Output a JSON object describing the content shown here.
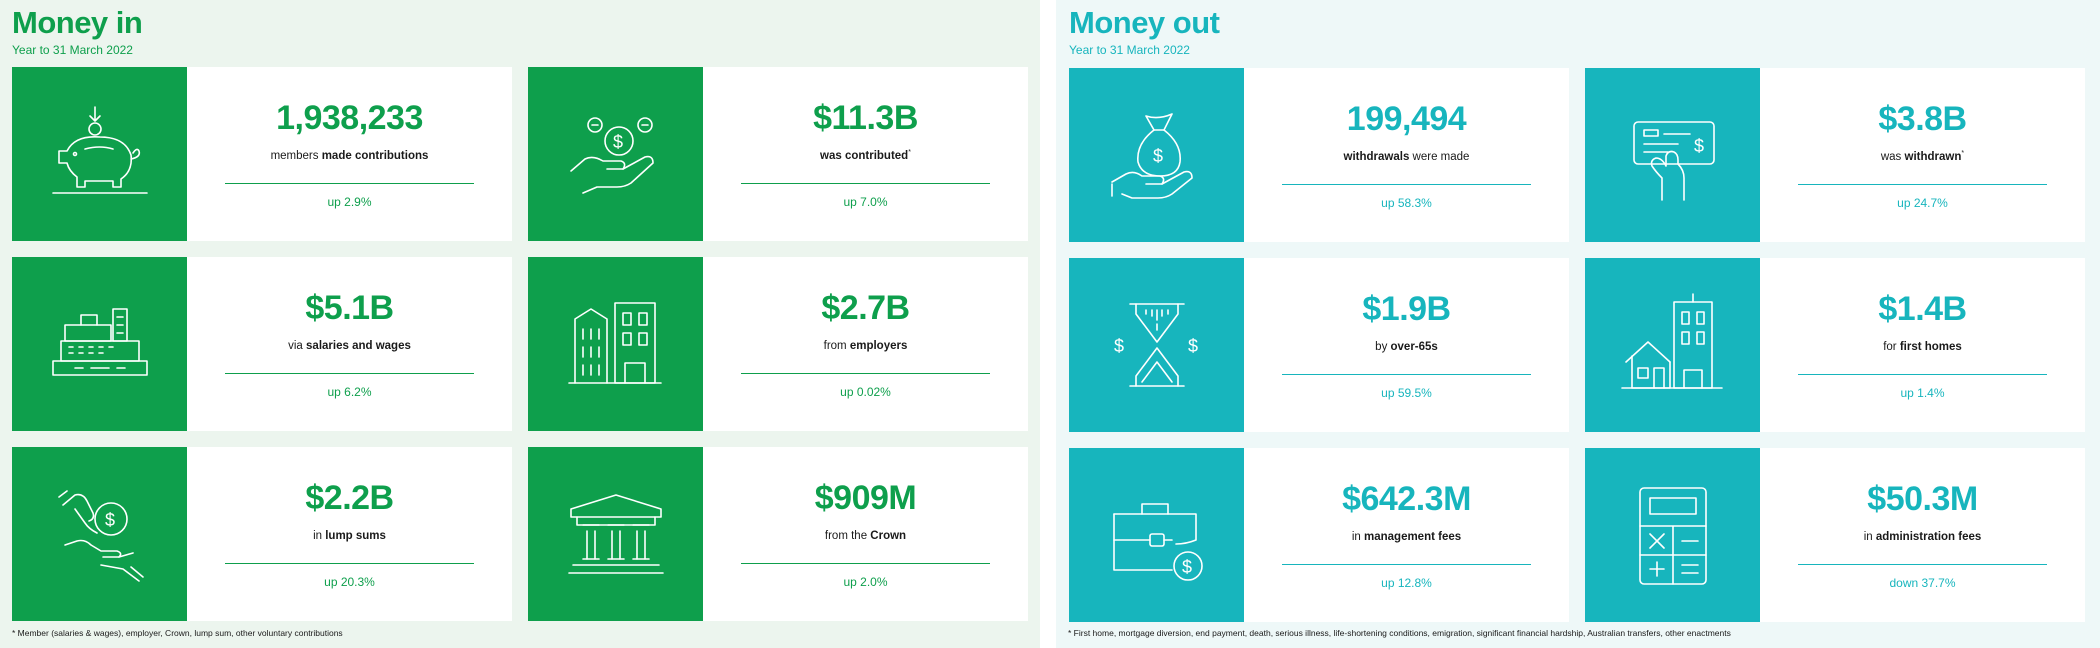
{
  "money_in": {
    "title": "Money in",
    "subtitle": "Year to 31 March 2022",
    "footnote": "* Member (salaries & wages), employer, Crown, lump sum, other voluntary contributions",
    "cards": [
      {
        "icon": "piggy-bank-icon",
        "value": "1,938,233",
        "desc_pre": "members ",
        "desc_bold": "made contributions",
        "desc_post": "",
        "sup": "",
        "change": "up 2.9%"
      },
      {
        "icon": "hand-coins-icon",
        "value": "$11.3B",
        "desc_pre": "",
        "desc_bold": "was contributed",
        "desc_post": "",
        "sup": "*",
        "change": "up 7.0%"
      },
      {
        "icon": "cash-register-icon",
        "value": "$5.1B",
        "desc_pre": "via ",
        "desc_bold": "salaries and wages",
        "desc_post": "",
        "sup": "",
        "change": "up 6.2%"
      },
      {
        "icon": "office-buildings-icon",
        "value": "$2.7B",
        "desc_pre": "from ",
        "desc_bold": "employers",
        "desc_post": "",
        "sup": "",
        "change": "up 0.02%"
      },
      {
        "icon": "hands-coin-icon",
        "value": "$2.2B",
        "desc_pre": "in ",
        "desc_bold": "lump sums",
        "desc_post": "",
        "sup": "",
        "change": "up 20.3%"
      },
      {
        "icon": "government-building-icon",
        "value": "$909M",
        "desc_pre": "from the ",
        "desc_bold": "Crown",
        "desc_post": "",
        "sup": "",
        "change": "up 2.0%"
      }
    ]
  },
  "money_out": {
    "title": "Money out",
    "subtitle": "Year to 31 March 2022",
    "footnote": "* First home, mortgage diversion, end payment, death, serious illness, life-shortening conditions, emigration, significant financial hardship, Australian transfers, other enactments",
    "cards": [
      {
        "icon": "money-bag-hand-icon",
        "value": "199,494",
        "desc_pre": "",
        "desc_bold": "withdrawals",
        "desc_post": " were made",
        "sup": "",
        "change": "up 58.3%"
      },
      {
        "icon": "cheque-hand-icon",
        "value": "$3.8B",
        "desc_pre": "was ",
        "desc_bold": "withdrawn",
        "desc_post": "",
        "sup": "*",
        "change": "up 24.7%"
      },
      {
        "icon": "hourglass-dollar-icon",
        "value": "$1.9B",
        "desc_pre": "by ",
        "desc_bold": "over-65s",
        "desc_post": "",
        "sup": "",
        "change": "up 59.5%"
      },
      {
        "icon": "house-building-icon",
        "value": "$1.4B",
        "desc_pre": "for ",
        "desc_bold": "first homes",
        "desc_post": "",
        "sup": "",
        "change": "up 1.4%"
      },
      {
        "icon": "briefcase-dollar-icon",
        "value": "$642.3M",
        "desc_pre": "in ",
        "desc_bold": "management fees",
        "desc_post": "",
        "sup": "",
        "change": "up 12.8%"
      },
      {
        "icon": "calculator-icon",
        "value": "$50.3M",
        "desc_pre": "in ",
        "desc_bold": "administration fees",
        "desc_post": "",
        "sup": "",
        "change": "down 37.7%"
      }
    ]
  }
}
